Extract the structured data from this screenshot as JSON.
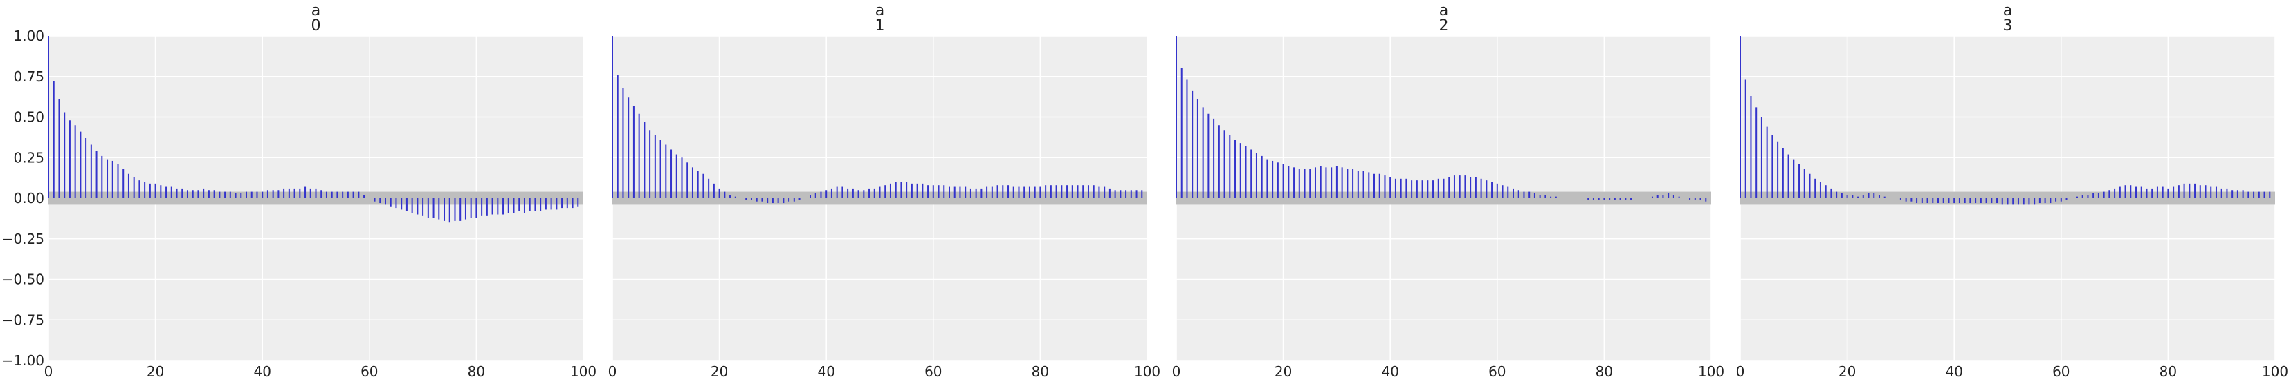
{
  "chart_data": [
    {
      "type": "bar",
      "title_lines": [
        "a",
        "0"
      ],
      "xlabel": "",
      "ylabel": "",
      "xlim": [
        0,
        100
      ],
      "ylim": [
        -1,
        1
      ],
      "x_ticks": [
        "0",
        "20",
        "40",
        "60",
        "80",
        "100"
      ],
      "y_ticks": [
        "1.00",
        "0.75",
        "0.50",
        "0.25",
        "0.00",
        "−0.25",
        "−0.50",
        "−0.75",
        "−1.00"
      ],
      "grid": true,
      "confidence_band": [
        -0.04,
        0.04
      ],
      "values": [
        1.0,
        0.72,
        0.61,
        0.53,
        0.48,
        0.45,
        0.41,
        0.37,
        0.33,
        0.29,
        0.26,
        0.24,
        0.23,
        0.21,
        0.18,
        0.15,
        0.13,
        0.11,
        0.1,
        0.09,
        0.09,
        0.08,
        0.07,
        0.07,
        0.06,
        0.06,
        0.05,
        0.05,
        0.05,
        0.06,
        0.05,
        0.05,
        0.04,
        0.04,
        0.04,
        0.03,
        0.03,
        0.04,
        0.04,
        0.04,
        0.04,
        0.05,
        0.05,
        0.05,
        0.06,
        0.06,
        0.06,
        0.06,
        0.07,
        0.06,
        0.06,
        0.05,
        0.04,
        0.04,
        0.04,
        0.04,
        0.04,
        0.04,
        0.04,
        0.02,
        0.0,
        -0.02,
        -0.03,
        -0.04,
        -0.05,
        -0.06,
        -0.07,
        -0.08,
        -0.09,
        -0.1,
        -0.11,
        -0.12,
        -0.12,
        -0.13,
        -0.14,
        -0.15,
        -0.14,
        -0.14,
        -0.13,
        -0.12,
        -0.12,
        -0.11,
        -0.11,
        -0.1,
        -0.1,
        -0.1,
        -0.09,
        -0.09,
        -0.08,
        -0.09,
        -0.08,
        -0.08,
        -0.08,
        -0.07,
        -0.07,
        -0.07,
        -0.06,
        -0.06,
        -0.06,
        -0.05
      ]
    },
    {
      "type": "bar",
      "title_lines": [
        "a",
        "1"
      ],
      "xlabel": "",
      "ylabel": "",
      "xlim": [
        0,
        100
      ],
      "ylim": [
        -1,
        1
      ],
      "x_ticks": [
        "0",
        "20",
        "40",
        "60",
        "80",
        "100"
      ],
      "y_ticks": [],
      "grid": true,
      "confidence_band": [
        -0.04,
        0.04
      ],
      "values": [
        1.0,
        0.76,
        0.68,
        0.62,
        0.57,
        0.52,
        0.47,
        0.42,
        0.39,
        0.36,
        0.33,
        0.3,
        0.27,
        0.25,
        0.22,
        0.19,
        0.17,
        0.15,
        0.12,
        0.09,
        0.06,
        0.04,
        0.02,
        0.01,
        0.0,
        -0.01,
        -0.01,
        -0.02,
        -0.02,
        -0.03,
        -0.03,
        -0.03,
        -0.03,
        -0.02,
        -0.02,
        -0.01,
        0.0,
        0.02,
        0.03,
        0.04,
        0.05,
        0.06,
        0.07,
        0.07,
        0.06,
        0.06,
        0.05,
        0.05,
        0.06,
        0.06,
        0.07,
        0.08,
        0.09,
        0.1,
        0.1,
        0.1,
        0.09,
        0.09,
        0.09,
        0.08,
        0.08,
        0.08,
        0.08,
        0.07,
        0.07,
        0.07,
        0.07,
        0.06,
        0.06,
        0.06,
        0.07,
        0.07,
        0.08,
        0.08,
        0.08,
        0.07,
        0.07,
        0.07,
        0.07,
        0.07,
        0.07,
        0.08,
        0.08,
        0.08,
        0.08,
        0.08,
        0.08,
        0.08,
        0.08,
        0.08,
        0.08,
        0.07,
        0.07,
        0.06,
        0.05,
        0.05,
        0.05,
        0.05,
        0.05,
        0.05
      ]
    },
    {
      "type": "bar",
      "title_lines": [
        "a",
        "2"
      ],
      "xlabel": "",
      "ylabel": "",
      "xlim": [
        0,
        100
      ],
      "ylim": [
        -1,
        1
      ],
      "x_ticks": [
        "0",
        "20",
        "40",
        "60",
        "80",
        "100"
      ],
      "y_ticks": [],
      "grid": true,
      "confidence_band": [
        -0.04,
        0.04
      ],
      "values": [
        1.0,
        0.8,
        0.73,
        0.66,
        0.61,
        0.56,
        0.52,
        0.49,
        0.45,
        0.42,
        0.39,
        0.36,
        0.34,
        0.32,
        0.3,
        0.28,
        0.26,
        0.24,
        0.23,
        0.22,
        0.21,
        0.2,
        0.19,
        0.18,
        0.18,
        0.18,
        0.19,
        0.2,
        0.19,
        0.19,
        0.2,
        0.19,
        0.18,
        0.18,
        0.17,
        0.17,
        0.16,
        0.15,
        0.15,
        0.14,
        0.13,
        0.12,
        0.12,
        0.12,
        0.11,
        0.11,
        0.11,
        0.11,
        0.11,
        0.12,
        0.12,
        0.13,
        0.14,
        0.14,
        0.14,
        0.13,
        0.13,
        0.12,
        0.11,
        0.1,
        0.09,
        0.08,
        0.07,
        0.06,
        0.05,
        0.04,
        0.04,
        0.03,
        0.02,
        0.02,
        0.01,
        0.01,
        0.0,
        0.0,
        0.0,
        0.0,
        0.0,
        -0.01,
        -0.01,
        -0.01,
        -0.01,
        -0.01,
        -0.01,
        -0.01,
        -0.01,
        -0.01,
        0.0,
        0.0,
        0.0,
        0.01,
        0.02,
        0.02,
        0.03,
        0.02,
        0.01,
        0.0,
        -0.01,
        -0.01,
        -0.01,
        -0.02
      ]
    },
    {
      "type": "bar",
      "title_lines": [
        "a",
        "3"
      ],
      "xlabel": "",
      "ylabel": "",
      "xlim": [
        0,
        100
      ],
      "ylim": [
        -1,
        1
      ],
      "x_ticks": [
        "0",
        "20",
        "40",
        "60",
        "80",
        "100"
      ],
      "y_ticks": [],
      "grid": true,
      "confidence_band": [
        -0.04,
        0.04
      ],
      "values": [
        1.0,
        0.73,
        0.63,
        0.56,
        0.5,
        0.44,
        0.39,
        0.35,
        0.31,
        0.27,
        0.24,
        0.21,
        0.18,
        0.15,
        0.12,
        0.1,
        0.08,
        0.06,
        0.04,
        0.03,
        0.02,
        0.02,
        0.01,
        0.02,
        0.03,
        0.03,
        0.02,
        0.01,
        0.0,
        0.0,
        -0.01,
        -0.02,
        -0.02,
        -0.03,
        -0.03,
        -0.03,
        -0.03,
        -0.03,
        -0.03,
        -0.03,
        -0.03,
        -0.03,
        -0.03,
        -0.03,
        -0.03,
        -0.03,
        -0.03,
        -0.03,
        -0.03,
        -0.04,
        -0.04,
        -0.04,
        -0.04,
        -0.04,
        -0.04,
        -0.04,
        -0.03,
        -0.03,
        -0.03,
        -0.02,
        -0.02,
        -0.01,
        0.0,
        0.01,
        0.02,
        0.02,
        0.03,
        0.03,
        0.04,
        0.05,
        0.06,
        0.07,
        0.08,
        0.08,
        0.07,
        0.07,
        0.06,
        0.06,
        0.07,
        0.07,
        0.06,
        0.07,
        0.08,
        0.09,
        0.09,
        0.09,
        0.08,
        0.08,
        0.07,
        0.07,
        0.06,
        0.06,
        0.05,
        0.05,
        0.05,
        0.04,
        0.04,
        0.04,
        0.04,
        0.04
      ]
    }
  ],
  "colors": {
    "bar": "#3333cc",
    "axes_background": "#eeeeee",
    "grid": "#ffffff",
    "confidence_band": "#bebebe",
    "text": "#222222"
  }
}
